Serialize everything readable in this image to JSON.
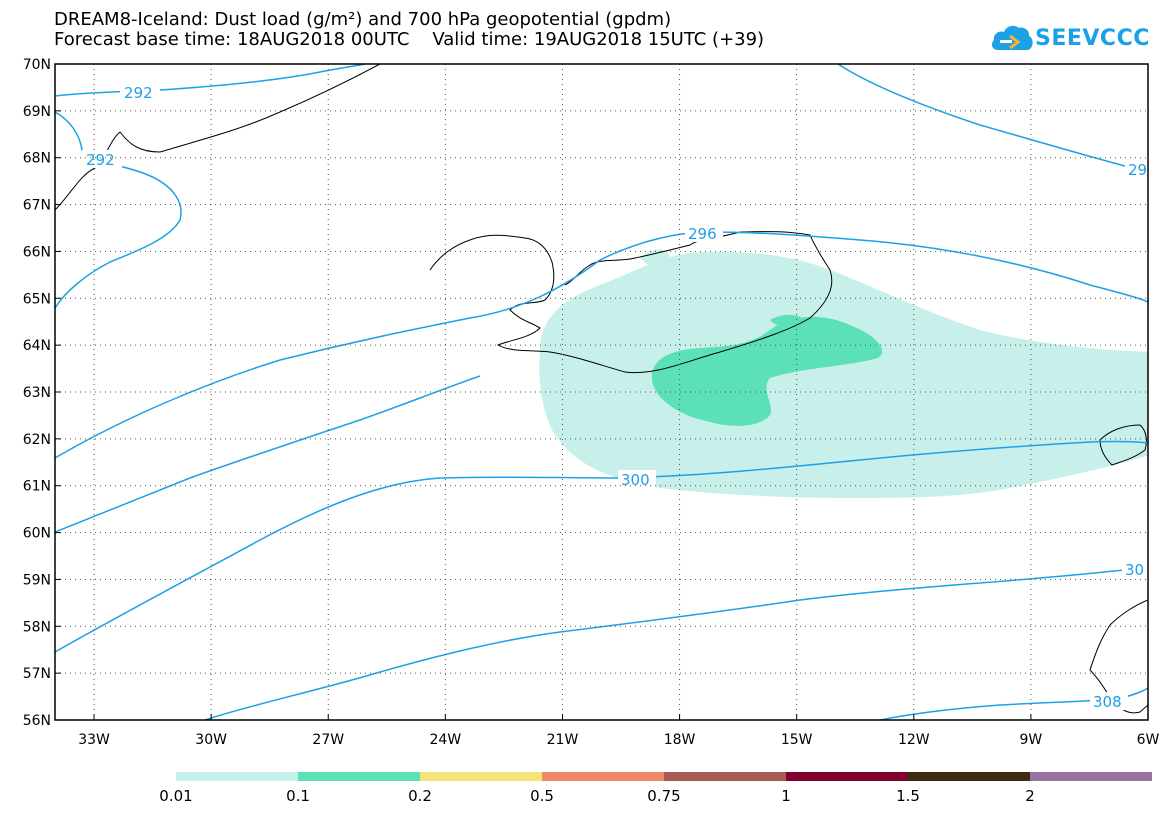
{
  "header": {
    "title_line1": "DREAM8-Iceland: Dust load (g/m²) and 700 hPa geopotential (gpdm)",
    "title_line2": "Forecast base time: 18AUG2018 00UTC    Valid time: 19AUG2018 15UTC (+39)"
  },
  "logo": {
    "text": "SEEVCCC",
    "icon": "cloud-icon",
    "color": "#1da1e6"
  },
  "map": {
    "lat_labels": [
      "70N",
      "69N",
      "68N",
      "67N",
      "66N",
      "65N",
      "64N",
      "63N",
      "62N",
      "61N",
      "60N",
      "59N",
      "58N",
      "57N",
      "56N"
    ],
    "lon_labels": [
      "33W",
      "30W",
      "27W",
      "24W",
      "21W",
      "18W",
      "15W",
      "12W",
      "9W",
      "6W"
    ],
    "contour_labels": [
      {
        "id": "c292a",
        "text": "292"
      },
      {
        "id": "c292b",
        "text": "292"
      },
      {
        "id": "c29r",
        "text": "29"
      },
      {
        "id": "c296",
        "text": "296"
      },
      {
        "id": "c300",
        "text": "300"
      },
      {
        "id": "c30r",
        "text": "30"
      },
      {
        "id": "c308",
        "text": "308"
      }
    ],
    "contour_color": "#1da1e6",
    "dust_colors": {
      "low": "#c8f0ea",
      "mid": "#5ce0b8"
    }
  },
  "legend": {
    "colors": [
      "#c8f0ea",
      "#5ce0b8",
      "#f5e37a",
      "#ee8a6a",
      "#a85a50",
      "#800030",
      "#3d2a12",
      "#9a72a0"
    ],
    "labels": [
      "0.01",
      "0.1",
      "0.2",
      "0.5",
      "0.75",
      "1",
      "1.5",
      "2"
    ]
  }
}
